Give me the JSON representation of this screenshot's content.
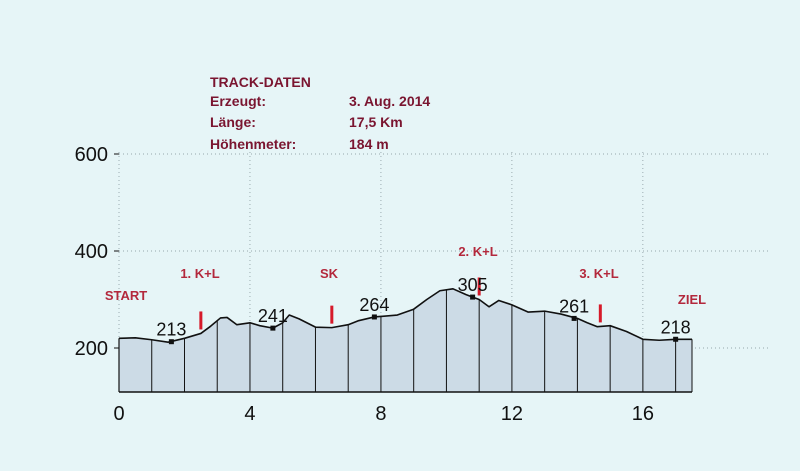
{
  "track_info": {
    "heading": "TRACK-DATEN",
    "rows": [
      {
        "label": "Erzeugt:",
        "value": "3. Aug. 2014"
      },
      {
        "label": "Länge:",
        "value": "17,5 Km"
      },
      {
        "label": "Höhenmeter:",
        "value": "184 m"
      }
    ]
  },
  "colors": {
    "background": "#e6f5f7",
    "fill": "#ccdbe6",
    "line": "#111111",
    "marker": "#d61a2a",
    "label_text": "#b3283c",
    "info_text": "#7a1530"
  },
  "chart_data": {
    "type": "area",
    "title": "",
    "xlabel": "",
    "ylabel": "",
    "xlim": [
      0,
      17.5
    ],
    "ylim": [
      0,
      600
    ],
    "x_ticks": [
      0,
      4,
      8,
      12,
      16
    ],
    "y_ticks": [
      200,
      400,
      600
    ],
    "x": [
      0,
      0.5,
      1,
      1.5,
      2,
      2.5,
      2.8,
      3.1,
      3.3,
      3.6,
      4,
      4.3,
      4.7,
      5,
      5.2,
      5.5,
      6,
      6.5,
      7,
      7.3,
      7.8,
      8.5,
      9,
      9.4,
      9.8,
      10.2,
      10.6,
      10.8,
      11,
      11.3,
      11.6,
      12,
      12.5,
      13,
      13.5,
      14,
      14.3,
      14.6,
      15,
      15.5,
      16,
      16.5,
      17,
      17.5
    ],
    "y": [
      220,
      221,
      217,
      212,
      220,
      230,
      245,
      262,
      263,
      248,
      252,
      246,
      241,
      252,
      268,
      260,
      243,
      242,
      248,
      256,
      264,
      268,
      280,
      300,
      318,
      322,
      310,
      305,
      300,
      285,
      298,
      289,
      274,
      276,
      270,
      261,
      252,
      244,
      246,
      234,
      218,
      216,
      218,
      218
    ],
    "grid": "dotted",
    "labeled_points": [
      {
        "x": 1.6,
        "y": 213,
        "label": "213"
      },
      {
        "x": 4.7,
        "y": 241,
        "label": "241"
      },
      {
        "x": 7.8,
        "y": 264,
        "label": "264"
      },
      {
        "x": 10.8,
        "y": 305,
        "label": "305"
      },
      {
        "x": 13.9,
        "y": 261,
        "label": "261"
      },
      {
        "x": 17.0,
        "y": 218,
        "label": "218"
      }
    ],
    "annotations": [
      {
        "label": "START",
        "x": 0
      },
      {
        "label": "1. K+L",
        "x": 2.5
      },
      {
        "label": "SK",
        "x": 6.5
      },
      {
        "label": "2. K+L",
        "x": 11.0
      },
      {
        "label": "3. K+L",
        "x": 14.7
      },
      {
        "label": "ZIEL",
        "x": 17.5
      }
    ],
    "section_markers_x": [
      2.5,
      6.5,
      11.0,
      14.7
    ]
  }
}
